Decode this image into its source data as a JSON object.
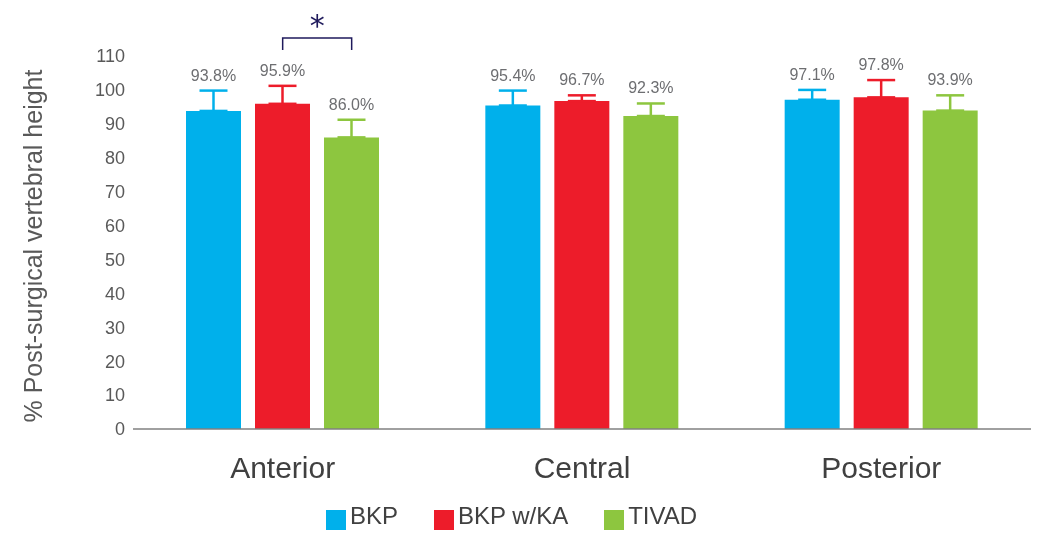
{
  "chart_data": {
    "type": "bar",
    "ylabel": "% Post-surgical vertebral height",
    "categories": [
      "Anterior",
      "Central",
      "Posterior"
    ],
    "series": [
      {
        "name": "BKP",
        "color": "#00b0eb",
        "values": [
          93.8,
          95.4,
          97.1
        ],
        "value_labels": [
          "93.8%",
          "95.4%",
          "97.1%"
        ],
        "errors": [
          [
            93.8,
            99.8
          ],
          [
            95.4,
            99.8
          ],
          [
            97.1,
            100.0
          ]
        ]
      },
      {
        "name": "BKP w/KA",
        "color": "#ed1c2a",
        "values": [
          95.9,
          96.7,
          97.8
        ],
        "value_labels": [
          "95.9%",
          "96.7%",
          "97.8%"
        ],
        "errors": [
          [
            95.9,
            101.2
          ],
          [
            96.7,
            98.4
          ],
          [
            97.8,
            102.9
          ]
        ]
      },
      {
        "name": "TIVAD",
        "color": "#8dc63f",
        "values": [
          86.0,
          92.3,
          93.9
        ],
        "value_labels": [
          "86.0%",
          "92.3%",
          "93.9%"
        ],
        "errors": [
          [
            86.0,
            91.2
          ],
          [
            92.3,
            96.0
          ],
          [
            93.9,
            98.4
          ]
        ]
      }
    ],
    "ylim": [
      0,
      110
    ],
    "yticks": [
      0,
      10,
      20,
      30,
      40,
      50,
      60,
      70,
      80,
      90,
      100,
      110
    ],
    "legend": "bottom",
    "annotations": [
      "*"
    ]
  }
}
